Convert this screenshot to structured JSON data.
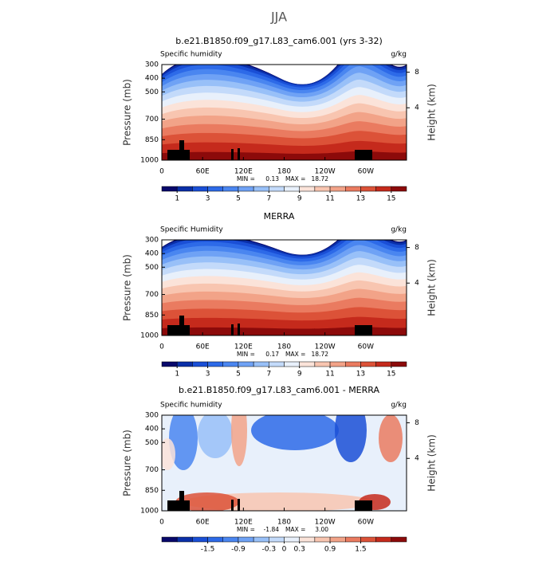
{
  "title": "JJA",
  "panels": [
    {
      "title": "b.e21.B1850.f09_g17.L83_cam6.001 (yrs 3-32)",
      "variable": "Specific humidity",
      "units": "g/kg",
      "y_label": "Pressure (mb)",
      "y2_label": "Height (km)",
      "ylim": [
        1000,
        300
      ],
      "yticks": [
        300,
        400,
        500,
        700,
        850,
        1000
      ],
      "y2ticks": [
        4,
        8
      ],
      "xlim": [
        0,
        360
      ],
      "xticks": [
        0,
        {
          "value": 60,
          "label": "60E"
        },
        {
          "value": 120,
          "label": "120E"
        },
        180,
        {
          "value": 240,
          "label": "120W"
        },
        {
          "value": 300,
          "label": "60W"
        }
      ],
      "min_label": "MIN =",
      "min": 0.13,
      "max_label": "MAX =",
      "max": 18.72,
      "colorbar": {
        "lim": [
          0,
          16
        ],
        "ticks": [
          1,
          3,
          5,
          7,
          9,
          11,
          13,
          15
        ],
        "colors": [
          "#08086b",
          "#0a2fa8",
          "#1a4fd6",
          "#2d6ae8",
          "#4a86f0",
          "#6fa2f5",
          "#98c0f8",
          "#c3dafa",
          "#e8f0fb",
          "#fbe3d9",
          "#f8c5b0",
          "#f2a388",
          "#ea7b60",
          "#dc5238",
          "#c52a1c",
          "#8c0a0a"
        ]
      }
    },
    {
      "title": "MERRA",
      "variable": "Specific Humidity",
      "units": "g/kg",
      "y_label": "Pressure (mb)",
      "y2_label": "Height (km)",
      "ylim": [
        1000,
        300
      ],
      "yticks": [
        300,
        400,
        500,
        700,
        850,
        1000
      ],
      "y2ticks": [
        4,
        8
      ],
      "xlim": [
        0,
        360
      ],
      "xticks": [
        0,
        {
          "value": 60,
          "label": "60E"
        },
        {
          "value": 120,
          "label": "120E"
        },
        180,
        {
          "value": 240,
          "label": "120W"
        },
        {
          "value": 300,
          "label": "60W"
        }
      ],
      "min_label": "MIN =",
      "min": 0.17,
      "max_label": "MAX =",
      "max": 18.72,
      "colorbar": {
        "lim": [
          0,
          16
        ],
        "ticks": [
          1,
          3,
          5,
          7,
          9,
          11,
          13,
          15
        ],
        "colors": [
          "#08086b",
          "#0a2fa8",
          "#1a4fd6",
          "#2d6ae8",
          "#4a86f0",
          "#6fa2f5",
          "#98c0f8",
          "#c3dafa",
          "#e8f0fb",
          "#fbe3d9",
          "#f8c5b0",
          "#f2a388",
          "#ea7b60",
          "#dc5238",
          "#c52a1c",
          "#8c0a0a"
        ]
      }
    },
    {
      "title": "b.e21.B1850.f09_g17.L83_cam6.001 - MERRA",
      "variable": "Specific humidity",
      "units": "g/kg",
      "y_label": "Pressure (mb)",
      "y2_label": "Height (km)",
      "ylim": [
        1000,
        300
      ],
      "yticks": [
        300,
        400,
        500,
        700,
        850,
        1000
      ],
      "y2ticks": [
        4,
        8
      ],
      "xlim": [
        0,
        360
      ],
      "xticks": [
        0,
        {
          "value": 60,
          "label": "60E"
        },
        {
          "value": 120,
          "label": "120E"
        },
        180,
        {
          "value": 240,
          "label": "120W"
        },
        {
          "value": 300,
          "label": "60W"
        }
      ],
      "min_label": "MIN =",
      "min": -1.84,
      "max_label": "MAX =",
      "max": 3.0,
      "colorbar": {
        "lim": [
          -2.4,
          2.4
        ],
        "ticks": [
          -1.5,
          -0.9,
          -0.3,
          0,
          0.3,
          0.9,
          1.5
        ],
        "colors": [
          "#08086b",
          "#0a2fa8",
          "#1a4fd6",
          "#2d6ae8",
          "#4a86f0",
          "#6fa2f5",
          "#98c0f8",
          "#c3dafa",
          "#e8f0fb",
          "#fbe3d9",
          "#f8c5b0",
          "#f2a388",
          "#ea7b60",
          "#dc5238",
          "#c52a1c",
          "#8c0a0a"
        ]
      }
    }
  ]
}
